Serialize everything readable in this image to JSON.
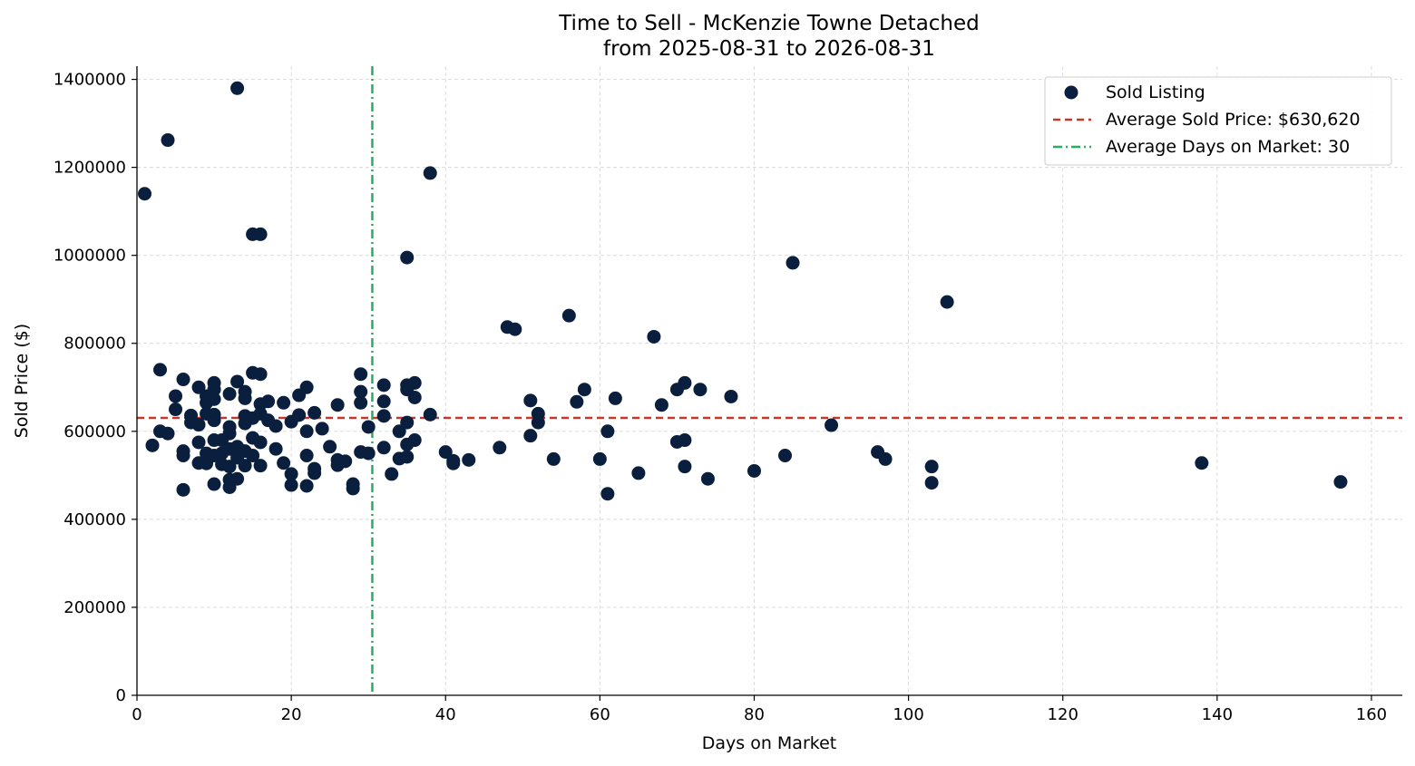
{
  "chart_data": {
    "type": "scatter",
    "title_line1": "Time to Sell - McKenzie Towne Detached",
    "title_line2": "from 2025-08-31 to 2026-08-31",
    "xlabel": "Days on Market",
    "ylabel": "Sold Price ($)",
    "xlim": [
      0,
      164
    ],
    "ylim": [
      0,
      1430000
    ],
    "xticks": [
      0,
      20,
      40,
      60,
      80,
      100,
      120,
      140,
      160
    ],
    "yticks": [
      0,
      200000,
      400000,
      600000,
      800000,
      1000000,
      1200000,
      1400000
    ],
    "grid": true,
    "legend_position": "top-right",
    "colors": {
      "points": "#0a1f3d",
      "avg_price": "#c0392b",
      "avg_days": "#27ae60"
    },
    "series": [
      {
        "name": "Sold Listing",
        "points": [
          [
            1,
            1140000
          ],
          [
            2,
            568000
          ],
          [
            3,
            740000
          ],
          [
            3,
            600000
          ],
          [
            4,
            1262000
          ],
          [
            4,
            595000
          ],
          [
            5,
            680000
          ],
          [
            5,
            650000
          ],
          [
            6,
            718000
          ],
          [
            6,
            555000
          ],
          [
            6,
            545000
          ],
          [
            6,
            467000
          ],
          [
            7,
            636000
          ],
          [
            7,
            620000
          ],
          [
            8,
            700000
          ],
          [
            8,
            615000
          ],
          [
            8,
            575000
          ],
          [
            8,
            528000
          ],
          [
            9,
            680000
          ],
          [
            9,
            665000
          ],
          [
            9,
            640000
          ],
          [
            9,
            550000
          ],
          [
            9,
            527000
          ],
          [
            10,
            710000
          ],
          [
            10,
            695000
          ],
          [
            10,
            673000
          ],
          [
            10,
            638000
          ],
          [
            10,
            625000
          ],
          [
            10,
            580000
          ],
          [
            10,
            545000
          ],
          [
            10,
            480000
          ],
          [
            11,
            580000
          ],
          [
            11,
            550000
          ],
          [
            11,
            525000
          ],
          [
            12,
            685000
          ],
          [
            12,
            610000
          ],
          [
            12,
            595000
          ],
          [
            12,
            560000
          ],
          [
            12,
            520000
          ],
          [
            12,
            490000
          ],
          [
            12,
            473000
          ],
          [
            13,
            1380000
          ],
          [
            13,
            713000
          ],
          [
            13,
            565000
          ],
          [
            13,
            540000
          ],
          [
            13,
            492000
          ],
          [
            14,
            690000
          ],
          [
            14,
            675000
          ],
          [
            14,
            635000
          ],
          [
            14,
            618000
          ],
          [
            14,
            555000
          ],
          [
            14,
            522000
          ],
          [
            15,
            1048000
          ],
          [
            15,
            733000
          ],
          [
            15,
            630000
          ],
          [
            15,
            585000
          ],
          [
            15,
            545000
          ],
          [
            16,
            1048000
          ],
          [
            16,
            730000
          ],
          [
            16,
            662000
          ],
          [
            16,
            640000
          ],
          [
            16,
            575000
          ],
          [
            16,
            522000
          ],
          [
            17,
            668000
          ],
          [
            17,
            625000
          ],
          [
            18,
            612000
          ],
          [
            18,
            560000
          ],
          [
            19,
            665000
          ],
          [
            19,
            528000
          ],
          [
            20,
            622000
          ],
          [
            20,
            503000
          ],
          [
            20,
            478000
          ],
          [
            21,
            682000
          ],
          [
            21,
            637000
          ],
          [
            22,
            700000
          ],
          [
            22,
            600000
          ],
          [
            22,
            545000
          ],
          [
            22,
            476000
          ],
          [
            23,
            642000
          ],
          [
            23,
            515000
          ],
          [
            23,
            505000
          ],
          [
            24,
            606000
          ],
          [
            25,
            565000
          ],
          [
            26,
            660000
          ],
          [
            26,
            535000
          ],
          [
            26,
            523000
          ],
          [
            27,
            532000
          ],
          [
            28,
            480000
          ],
          [
            28,
            470000
          ],
          [
            29,
            730000
          ],
          [
            29,
            690000
          ],
          [
            29,
            665000
          ],
          [
            29,
            553000
          ],
          [
            30,
            610000
          ],
          [
            30,
            550000
          ],
          [
            32,
            705000
          ],
          [
            32,
            668000
          ],
          [
            32,
            635000
          ],
          [
            32,
            563000
          ],
          [
            33,
            503000
          ],
          [
            34,
            600000
          ],
          [
            34,
            538000
          ],
          [
            35,
            995000
          ],
          [
            35,
            705000
          ],
          [
            35,
            695000
          ],
          [
            35,
            620000
          ],
          [
            35,
            570000
          ],
          [
            35,
            542000
          ],
          [
            36,
            710000
          ],
          [
            36,
            677000
          ],
          [
            36,
            580000
          ],
          [
            38,
            1187000
          ],
          [
            38,
            638000
          ],
          [
            40,
            553000
          ],
          [
            41,
            533000
          ],
          [
            41,
            527000
          ],
          [
            43,
            535000
          ],
          [
            47,
            563000
          ],
          [
            48,
            837000
          ],
          [
            49,
            832000
          ],
          [
            51,
            670000
          ],
          [
            51,
            590000
          ],
          [
            52,
            640000
          ],
          [
            52,
            620000
          ],
          [
            54,
            537000
          ],
          [
            56,
            863000
          ],
          [
            57,
            667000
          ],
          [
            58,
            695000
          ],
          [
            60,
            537000
          ],
          [
            61,
            600000
          ],
          [
            61,
            458000
          ],
          [
            62,
            675000
          ],
          [
            65,
            505000
          ],
          [
            67,
            815000
          ],
          [
            68,
            660000
          ],
          [
            70,
            695000
          ],
          [
            70,
            576000
          ],
          [
            71,
            710000
          ],
          [
            71,
            580000
          ],
          [
            71,
            520000
          ],
          [
            73,
            695000
          ],
          [
            74,
            492000
          ],
          [
            77,
            679000
          ],
          [
            80,
            510000
          ],
          [
            84,
            545000
          ],
          [
            85,
            983000
          ],
          [
            90,
            614000
          ],
          [
            96,
            553000
          ],
          [
            97,
            537000
          ],
          [
            103,
            520000
          ],
          [
            103,
            483000
          ],
          [
            105,
            894000
          ],
          [
            138,
            528000
          ],
          [
            156,
            485000
          ]
        ]
      }
    ],
    "reference_lines": [
      {
        "kind": "horizontal",
        "value": 630620,
        "label": "Average Sold Price: $630,620"
      },
      {
        "kind": "vertical",
        "value": 30.5,
        "label": "Average Days on Market: 30"
      }
    ]
  }
}
